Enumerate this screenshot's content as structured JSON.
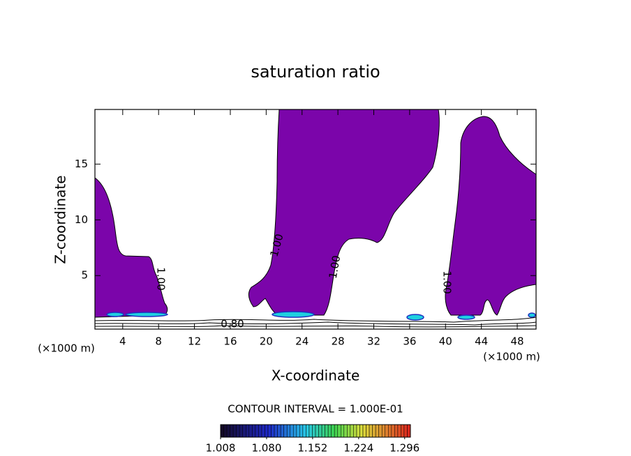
{
  "chart_data": {
    "type": "contour",
    "title": "saturation ratio",
    "xlabel": "X-coordinate",
    "ylabel": "Z-coordinate",
    "x_unit": "(×1000 m)",
    "xlim": [
      0.9,
      50.1
    ],
    "xticks": [
      4,
      8,
      12,
      16,
      20,
      24,
      28,
      32,
      36,
      40,
      44,
      48
    ],
    "ylim": [
      0.2,
      19.9
    ],
    "yticks": [
      5,
      10,
      15
    ],
    "region_color": "#7b05aa",
    "contour_labels": [
      "1.00",
      "1.00",
      "1.00",
      "1.00",
      "0.80"
    ],
    "contour_interval_text": "CONTOUR INTERVAL = 1.000E-01",
    "colorbar_lim": [
      1.008,
      1.305
    ],
    "colorbar_ticks": [
      1.008,
      {
        "value": 1.08,
        "label": "1.080"
      },
      1.152,
      1.224,
      1.296
    ]
  }
}
